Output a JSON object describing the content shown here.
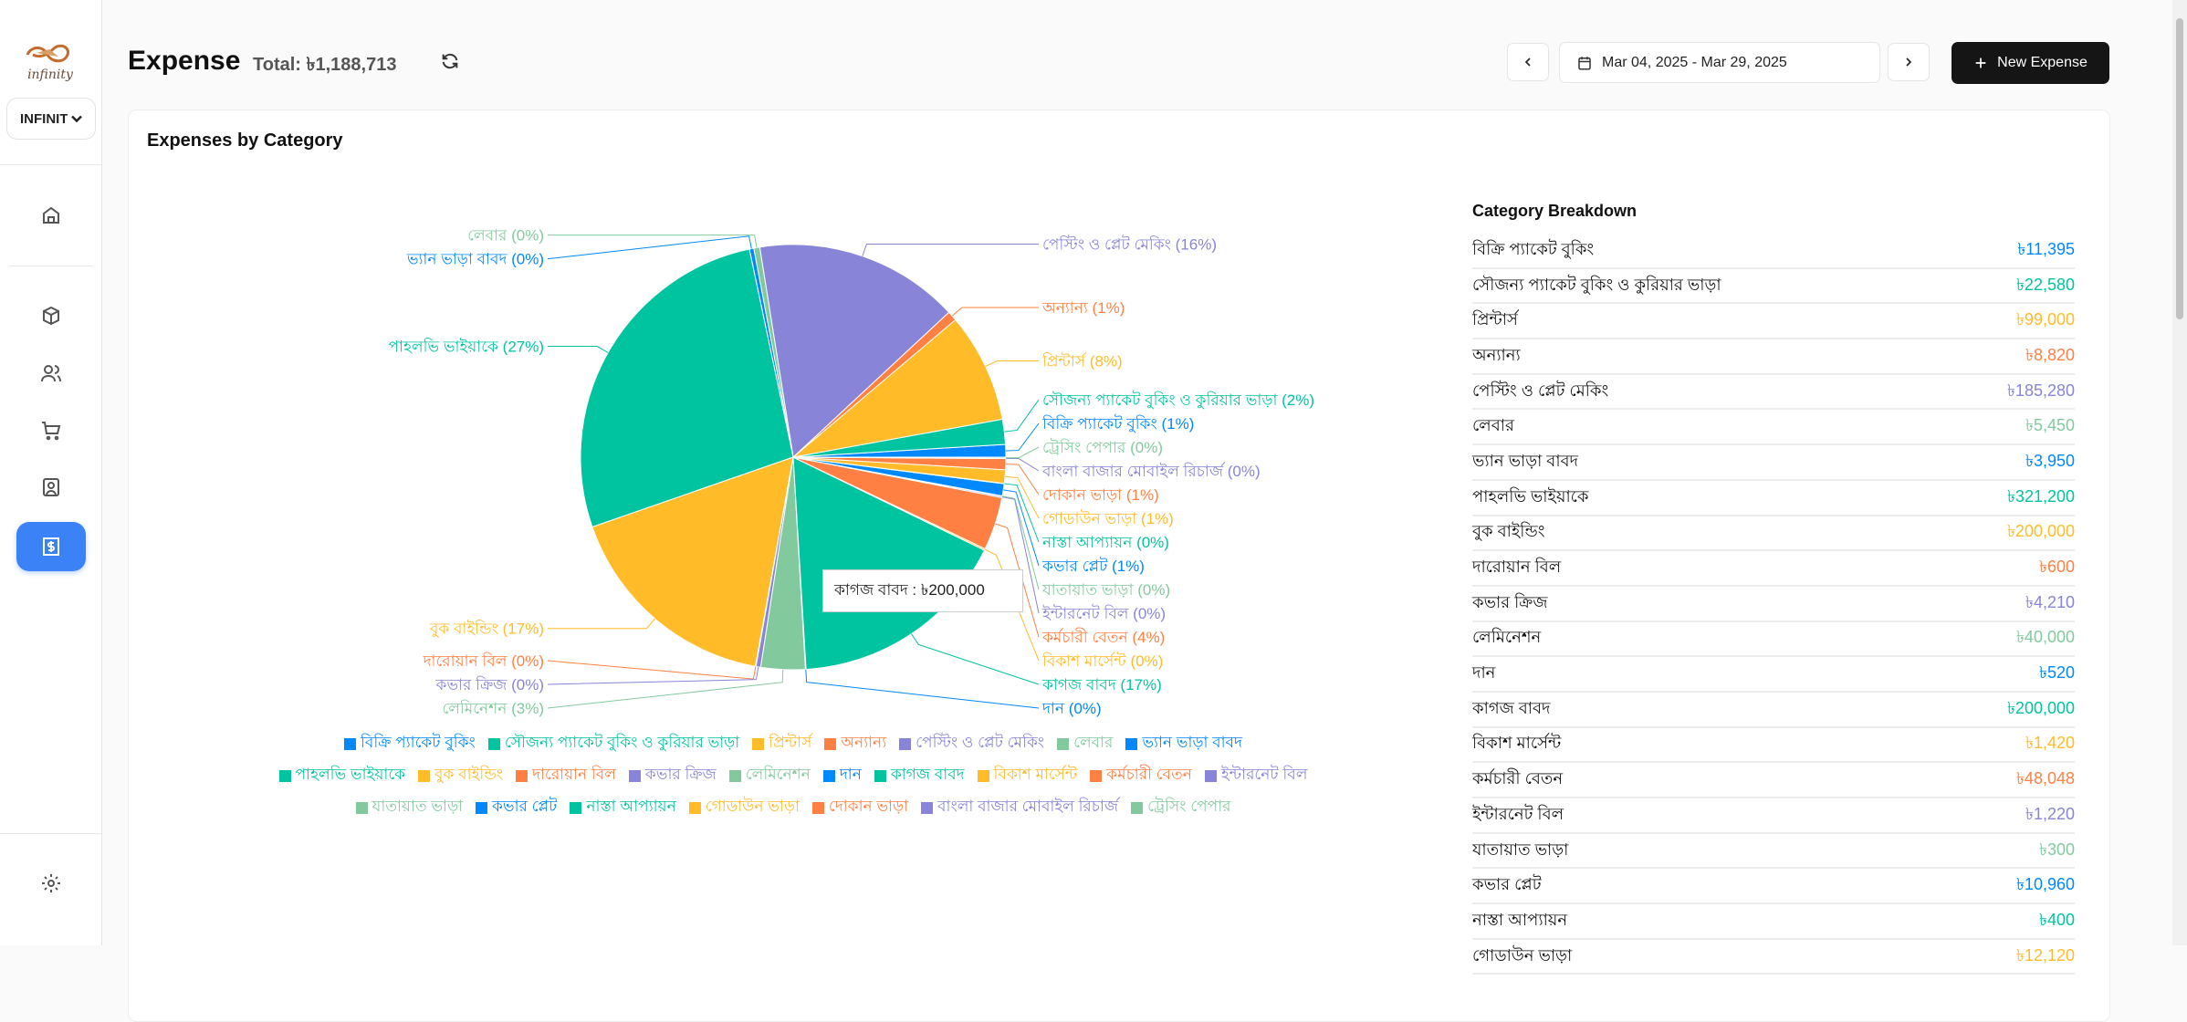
{
  "app": {
    "logo_text": "infinity",
    "org_select": "INFINITY"
  },
  "sidebar": {
    "items": [
      {
        "icon": "home-icon"
      },
      {
        "icon": "package-icon"
      },
      {
        "icon": "users-icon"
      },
      {
        "icon": "cart-icon"
      },
      {
        "icon": "contact-icon"
      },
      {
        "icon": "receipt-dollar-icon",
        "active": true
      },
      {
        "icon": "gear-icon"
      }
    ]
  },
  "header": {
    "title": "Expense",
    "total": "Total: ৳1,188,713",
    "date_range": "Mar 04, 2025 - Mar 29, 2025",
    "new_button": "New Expense"
  },
  "card": {
    "title": "Expenses by Category",
    "breakdown_title": "Category Breakdown",
    "tooltip": "কাগজ বাবদ : ৳200,000"
  },
  "colors": [
    "#0088FE",
    "#00C49F",
    "#FFBB28",
    "#FF8042",
    "#8884D8",
    "#82CA9D"
  ],
  "breakdown": [
    {
      "name": "বিক্রি প্যাকেট বুকিং",
      "value": "৳11,395"
    },
    {
      "name": "সৌজন্য প্যাকেট বুকিং ও কুরিয়ার ভাড়া",
      "value": "৳22,580"
    },
    {
      "name": "প্রিন্টার্স",
      "value": "৳99,000"
    },
    {
      "name": "অন্যান্য",
      "value": "৳8,820"
    },
    {
      "name": "পেস্টিং ও প্লেট মেকিং",
      "value": "৳185,280"
    },
    {
      "name": "লেবার",
      "value": "৳5,450"
    },
    {
      "name": "ভ্যান ভাড়া বাবদ",
      "value": "৳3,950"
    },
    {
      "name": "পাহলভি ভাইয়াকে",
      "value": "৳321,200"
    },
    {
      "name": "বুক বাইন্ডিং",
      "value": "৳200,000"
    },
    {
      "name": "দারোয়ান বিল",
      "value": "৳600"
    },
    {
      "name": "কভার ক্রিজ",
      "value": "৳4,210"
    },
    {
      "name": "লেমিনেশন",
      "value": "৳40,000"
    },
    {
      "name": "দান",
      "value": "৳520"
    },
    {
      "name": "কাগজ বাবদ",
      "value": "৳200,000"
    },
    {
      "name": "বিকাশ মার্সেন্ট",
      "value": "৳1,420"
    },
    {
      "name": "কর্মচারী বেতন",
      "value": "৳48,048"
    },
    {
      "name": "ইন্টারনেট বিল",
      "value": "৳1,220"
    },
    {
      "name": "যাতায়াত ভাড়া",
      "value": "৳300"
    },
    {
      "name": "কভার প্লেট",
      "value": "৳10,960"
    },
    {
      "name": "নাস্তা আপ্যায়ন",
      "value": "৳400"
    },
    {
      "name": "গোডাউন ভাড়া",
      "value": "৳12,120"
    }
  ],
  "chart_data": {
    "type": "pie",
    "title": "Expenses by Category",
    "legend": "bottom",
    "categories": [
      "বিক্রি প্যাকেট বুকিং",
      "সৌজন্য প্যাকেট বুকিং ও কুরিয়ার ভাড়া",
      "প্রিন্টার্স",
      "অন্যান্য",
      "পেস্টিং ও প্লেট মেকিং",
      "লেবার",
      "ভ্যান ভাড়া বাবদ",
      "পাহলভি ভাইয়াকে",
      "বুক বাইন্ডিং",
      "দারোয়ান বিল",
      "কভার ক্রিজ",
      "লেমিনেশন",
      "দান",
      "কাগজ বাবদ",
      "বিকাশ মার্সেন্ট",
      "কর্মচারী বেতন",
      "ইন্টারনেট বিল",
      "যাতায়াত ভাড়া",
      "কভার প্লেট",
      "নাস্তা আপ্যায়ন",
      "গোডাউন ভাড়া",
      "দোকান ভাড়া",
      "বাংলা বাজার মোবাইল রিচার্জ",
      "ট্রেসিং পেপার"
    ],
    "values": [
      11395,
      22580,
      99000,
      8820,
      185280,
      5450,
      3950,
      321200,
      200000,
      600,
      4210,
      40000,
      520,
      200000,
      1420,
      48048,
      1220,
      300,
      10960,
      400,
      12120,
      10000,
      240,
      1000
    ]
  }
}
